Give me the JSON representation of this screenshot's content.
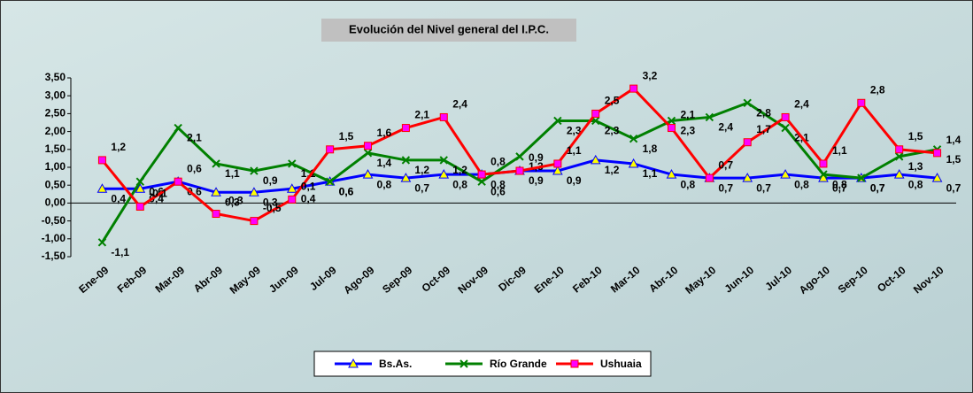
{
  "chart_data": {
    "type": "line",
    "title": "Evolución del Nivel general del I.P.C.",
    "categories": [
      "Ene-09",
      "Feb-09",
      "Mar-09",
      "Abr-09",
      "May-09",
      "Jun-09",
      "Jul-09",
      "Ago-09",
      "Sep-09",
      "Oct-09",
      "Nov-09",
      "Dic-09",
      "Ene-10",
      "Feb-10",
      "Mar-10",
      "Abr-10",
      "May-10",
      "Jun-10",
      "Jul-10",
      "Ago-10",
      "Sep-10",
      "Oct-10",
      "Nov-10"
    ],
    "series": [
      {
        "name": "Bs.As.",
        "color": "#0000ff",
        "marker": "triangle",
        "values": [
          0.4,
          0.4,
          0.6,
          0.3,
          0.3,
          0.4,
          0.6,
          0.8,
          0.7,
          0.8,
          0.8,
          0.9,
          0.9,
          1.2,
          1.1,
          0.8,
          0.7,
          0.7,
          0.8,
          0.7,
          0.7,
          0.8,
          0.7
        ],
        "value_labels": [
          "0,4",
          "0,4",
          "0,6",
          "0,3",
          "0,3",
          "0,4",
          "0,6",
          "0,8",
          "0,7",
          "0,8",
          "0,8",
          "0,9",
          "0,9",
          "1,2",
          "1,1",
          "0,8",
          "0,7",
          "0,7",
          "0,8",
          "0,7",
          "0,7",
          "0,8",
          "0,7"
        ]
      },
      {
        "name": "Río Grande",
        "color": "#008000",
        "marker": "x",
        "values": [
          -1.1,
          0.6,
          2.1,
          1.1,
          0.9,
          1.1,
          0.6,
          1.4,
          1.2,
          1.2,
          0.6,
          1.3,
          2.3,
          2.3,
          1.8,
          2.3,
          2.4,
          2.8,
          2.1,
          0.8,
          0.7,
          1.3,
          1.5
        ],
        "value_labels": [
          "-1,1",
          "0,6",
          "2,1",
          "1,1",
          "0,9",
          "1,1",
          "0,6",
          "1,4",
          "1,2",
          "1,2",
          "0,6",
          "1,3",
          "2,3",
          "2,3",
          "1,8",
          "2,3",
          "2,4",
          "2,8",
          "2,1",
          "0,8",
          "0,7",
          "1,3",
          "1,5"
        ]
      },
      {
        "name": "Ushuaia",
        "color": "#ff0000",
        "marker": "square",
        "values": [
          1.2,
          -0.1,
          0.6,
          -0.3,
          -0.5,
          0.1,
          1.5,
          1.6,
          2.1,
          2.4,
          0.8,
          0.9,
          1.1,
          2.5,
          3.2,
          2.1,
          0.7,
          1.7,
          2.4,
          1.1,
          2.8,
          1.5,
          1.4
        ],
        "value_labels": [
          "1,2",
          "-0,1",
          "0,6",
          "-0,3",
          "-0,5",
          "0,1",
          "1,5",
          "1,6",
          "2,1",
          "2,4",
          "0,8",
          "0,9",
          "1,1",
          "2,5",
          "3,2",
          "2,1",
          "0,7",
          "1,7",
          "2,4",
          "1,1",
          "2,8",
          "1,5",
          "1,4"
        ]
      }
    ],
    "ylim": [
      -1.5,
      3.5
    ],
    "yticks": [
      {
        "value": 3.5,
        "label": "3,50"
      },
      {
        "value": 3,
        "label": "3,00"
      },
      {
        "value": 2.5,
        "label": "2,50"
      },
      {
        "value": 2,
        "label": "2,00"
      },
      {
        "value": 1.5,
        "label": "1,50"
      },
      {
        "value": 1,
        "label": "1,00"
      },
      {
        "value": 0.5,
        "label": "0,50"
      },
      {
        "value": 0,
        "label": "0,00"
      },
      {
        "value": -0.5,
        "label": "-0,50"
      },
      {
        "value": -1,
        "label": "-1,00"
      },
      {
        "value": -1.5,
        "label": "-1,50"
      }
    ],
    "grid": false
  }
}
